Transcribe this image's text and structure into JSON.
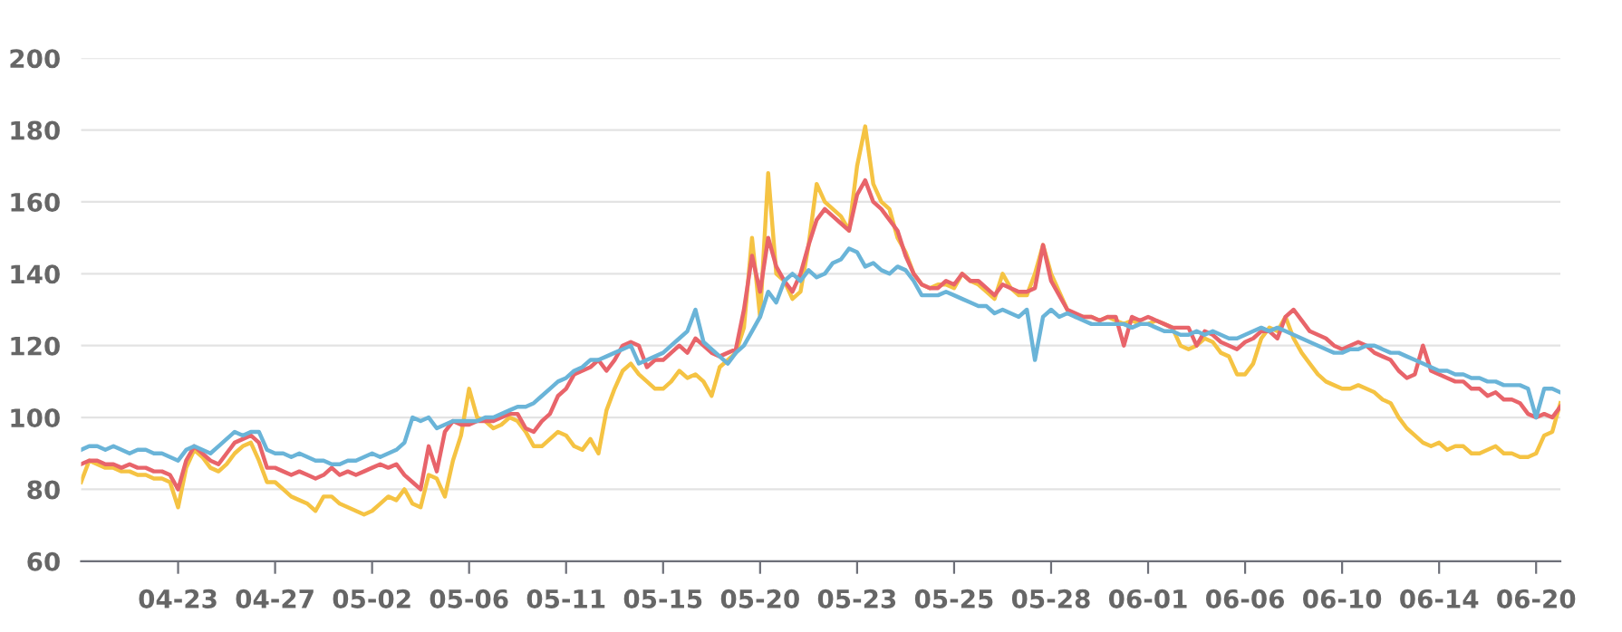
{
  "chart_data": {
    "type": "line",
    "categories": [
      null,
      null,
      null,
      null,
      null,
      null,
      null,
      null,
      null,
      null,
      null,
      null,
      "04-23",
      null,
      null,
      null,
      null,
      null,
      null,
      null,
      null,
      null,
      null,
      null,
      "04-27",
      null,
      null,
      null,
      null,
      null,
      null,
      null,
      null,
      null,
      null,
      null,
      "05-02",
      null,
      null,
      null,
      null,
      null,
      null,
      null,
      null,
      null,
      null,
      null,
      "05-06",
      null,
      null,
      null,
      null,
      null,
      null,
      null,
      null,
      null,
      null,
      null,
      "05-11",
      null,
      null,
      null,
      null,
      null,
      null,
      null,
      null,
      null,
      null,
      null,
      "05-15",
      null,
      null,
      null,
      null,
      null,
      null,
      null,
      null,
      null,
      null,
      null,
      "05-20",
      null,
      null,
      null,
      null,
      null,
      null,
      null,
      null,
      null,
      null,
      null,
      "05-23",
      null,
      null,
      null,
      null,
      null,
      null,
      null,
      null,
      null,
      null,
      null,
      "05-25",
      null,
      null,
      null,
      null,
      null,
      null,
      null,
      null,
      null,
      null,
      null,
      "05-28",
      null,
      null,
      null,
      null,
      null,
      null,
      null,
      null,
      null,
      null,
      null,
      "06-01",
      null,
      null,
      null,
      null,
      null,
      null,
      null,
      null,
      null,
      null,
      null,
      "06-06",
      null,
      null,
      null,
      null,
      null,
      null,
      null,
      null,
      null,
      null,
      null,
      "06-10",
      null,
      null,
      null,
      null,
      null,
      null,
      null,
      null,
      null,
      null,
      null,
      "06-14",
      null,
      null,
      null,
      null,
      null,
      null,
      null,
      null,
      null,
      null,
      null,
      "06-20",
      null,
      null,
      null
    ],
    "series": [
      {
        "color": "#f5c343",
        "values": [
          82,
          88,
          87,
          86,
          86,
          85,
          85,
          84,
          84,
          83,
          83,
          82,
          75,
          86,
          91,
          89,
          86,
          85,
          87,
          90,
          92,
          93,
          88,
          82,
          82,
          80,
          78,
          77,
          76,
          74,
          78,
          78,
          76,
          75,
          74,
          73,
          74,
          76,
          78,
          77,
          80,
          76,
          75,
          84,
          83,
          78,
          88,
          95,
          108,
          100,
          99,
          97,
          98,
          100,
          99,
          96,
          92,
          92,
          94,
          96,
          95,
          92,
          91,
          94,
          90,
          102,
          108,
          113,
          115,
          112,
          110,
          108,
          108,
          110,
          113,
          111,
          112,
          110,
          106,
          114,
          116,
          118,
          125,
          150,
          128,
          168,
          140,
          138,
          133,
          135,
          148,
          165,
          160,
          158,
          156,
          152,
          170,
          181,
          165,
          160,
          158,
          150,
          146,
          140,
          137,
          136,
          137,
          137,
          136,
          140,
          138,
          137,
          135,
          133,
          140,
          136,
          134,
          134,
          140,
          148,
          140,
          135,
          130,
          128,
          128,
          128,
          127,
          128,
          127,
          126,
          127,
          126,
          126,
          127,
          126,
          125,
          120,
          119,
          120,
          122,
          121,
          118,
          117,
          112,
          112,
          115,
          122,
          125,
          124,
          128,
          122,
          118,
          115,
          112,
          110,
          109,
          108,
          108,
          109,
          108,
          107,
          105,
          104,
          100,
          97,
          95,
          93,
          92,
          93,
          91,
          92,
          92,
          90,
          90,
          91,
          92,
          90,
          90,
          89,
          89,
          90,
          95,
          96,
          104
        ]
      },
      {
        "color": "#e8646a",
        "values": [
          87,
          88,
          88,
          87,
          87,
          86,
          87,
          86,
          86,
          85,
          85,
          84,
          80,
          88,
          92,
          90,
          88,
          87,
          90,
          93,
          94,
          95,
          93,
          86,
          86,
          85,
          84,
          85,
          84,
          83,
          84,
          86,
          84,
          85,
          84,
          85,
          86,
          87,
          86,
          87,
          84,
          82,
          80,
          92,
          85,
          96,
          99,
          98,
          98,
          99,
          99,
          99,
          100,
          101,
          101,
          97,
          96,
          99,
          101,
          106,
          108,
          112,
          113,
          114,
          116,
          113,
          116,
          120,
          121,
          120,
          114,
          116,
          116,
          118,
          120,
          118,
          122,
          120,
          118,
          117,
          118,
          119,
          130,
          145,
          135,
          150,
          142,
          138,
          135,
          140,
          148,
          155,
          158,
          156,
          154,
          152,
          162,
          166,
          160,
          158,
          155,
          152,
          145,
          140,
          137,
          136,
          136,
          138,
          137,
          140,
          138,
          138,
          136,
          134,
          137,
          136,
          135,
          135,
          136,
          148,
          138,
          134,
          130,
          129,
          128,
          128,
          127,
          128,
          128,
          120,
          128,
          127,
          128,
          127,
          126,
          125,
          125,
          125,
          120,
          124,
          123,
          121,
          120,
          119,
          121,
          122,
          124,
          124,
          122,
          128,
          130,
          127,
          124,
          123,
          122,
          120,
          119,
          120,
          121,
          120,
          118,
          117,
          116,
          113,
          111,
          112,
          120,
          113,
          112,
          111,
          110,
          110,
          108,
          108,
          106,
          107,
          105,
          105,
          104,
          101,
          100,
          101,
          100,
          103
        ]
      },
      {
        "color": "#6ab4d8",
        "values": [
          91,
          92,
          92,
          91,
          92,
          91,
          90,
          91,
          91,
          90,
          90,
          89,
          88,
          91,
          92,
          91,
          90,
          92,
          94,
          96,
          95,
          96,
          96,
          91,
          90,
          90,
          89,
          90,
          89,
          88,
          88,
          87,
          87,
          88,
          88,
          89,
          90,
          89,
          90,
          91,
          93,
          100,
          99,
          100,
          97,
          98,
          99,
          99,
          99,
          99,
          100,
          100,
          101,
          102,
          103,
          103,
          104,
          106,
          108,
          110,
          111,
          113,
          114,
          116,
          116,
          117,
          118,
          119,
          120,
          115,
          116,
          117,
          118,
          120,
          122,
          124,
          130,
          121,
          119,
          117,
          115,
          118,
          120,
          124,
          128,
          135,
          132,
          138,
          140,
          138,
          141,
          139,
          140,
          143,
          144,
          147,
          146,
          142,
          143,
          141,
          140,
          142,
          141,
          138,
          134,
          134,
          134,
          135,
          134,
          133,
          132,
          131,
          131,
          129,
          130,
          129,
          128,
          130,
          116,
          128,
          130,
          128,
          129,
          128,
          127,
          126,
          126,
          126,
          126,
          126,
          125,
          126,
          126,
          125,
          124,
          124,
          123,
          123,
          124,
          123,
          124,
          123,
          122,
          122,
          123,
          124,
          125,
          124,
          125,
          124,
          123,
          122,
          121,
          120,
          119,
          118,
          118,
          119,
          119,
          120,
          120,
          119,
          118,
          118,
          117,
          116,
          115,
          114,
          113,
          113,
          112,
          112,
          111,
          111,
          110,
          110,
          109,
          109,
          109,
          108,
          100,
          108,
          108,
          107
        ]
      }
    ],
    "ylim": [
      60,
      200
    ],
    "yticks": [
      60,
      80,
      100,
      120,
      140,
      160,
      180,
      200
    ],
    "grid": "y",
    "legend": false,
    "marker": "none",
    "line_style": "solid"
  }
}
